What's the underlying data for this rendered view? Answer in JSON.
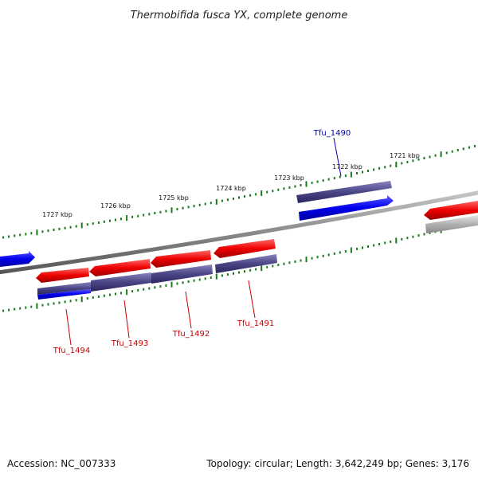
{
  "title": "Thermobifida fusca YX, complete genome",
  "footer": {
    "accession": "Accession: NC_007333",
    "summary": "Topology: circular; Length: 3,642,249 bp; Genes: 3,176"
  },
  "scale_labels": [
    "1721 kbp",
    "1722 kbp",
    "1723 kbp",
    "1724 kbp",
    "1725 kbp",
    "1726 kbp",
    "1727 kbp"
  ],
  "genes": [
    {
      "label": "Tfu_1490",
      "strand": "forward"
    },
    {
      "label": "Tfu_1491",
      "strand": "reverse"
    },
    {
      "label": "Tfu_1492",
      "strand": "reverse"
    },
    {
      "label": "Tfu_1493",
      "strand": "reverse"
    },
    {
      "label": "Tfu_1494",
      "strand": "reverse"
    }
  ],
  "colors": {
    "forward_cds": "#0000ee",
    "reverse_cds": "#ee0000",
    "forward_label": "#0000aa",
    "reverse_label": "#cc0000",
    "forward_feature": "#4a4585",
    "backbone": "#8a8a8a",
    "ticks": "#1a7a1a",
    "gray_feature": "#b0b0b0"
  }
}
